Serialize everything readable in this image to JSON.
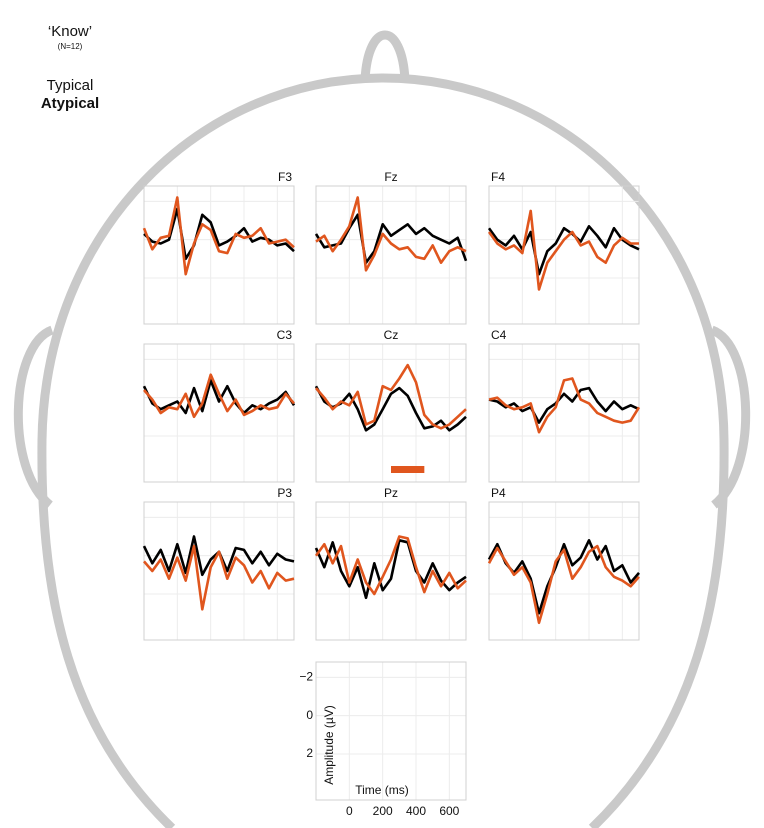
{
  "chart_data": {
    "type": "line",
    "title": "‘Know’",
    "subtitle": "(N=12)",
    "xlabel": "Time (ms)",
    "ylabel": "Amplitude (µV)",
    "x": [
      -200,
      -150,
      -100,
      -50,
      0,
      50,
      100,
      150,
      200,
      250,
      300,
      350,
      400,
      450,
      500,
      550,
      600,
      650,
      700
    ],
    "xlim": [
      -200,
      700
    ],
    "ylim": [
      -2.8,
      4.4
    ],
    "y_inverted": true,
    "xticks": [
      0,
      200,
      400,
      600
    ],
    "yticks": [
      {
        "value": -2,
        "label": "−2"
      },
      0,
      2
    ],
    "grid": true,
    "series": [
      {
        "name": "Typical",
        "color": "#000000"
      },
      {
        "name": "Atypical",
        "color": "#e0561e"
      }
    ],
    "panels": [
      {
        "label": "F3",
        "values": [
          [
            -0.3,
            0.1,
            0.2,
            0,
            -1.6,
            1.0,
            0.3,
            -1.3,
            -0.9,
            0.3,
            0.1,
            -0.2,
            -0.6,
            0.1,
            -0.1,
            0,
            0.3,
            0.2,
            0.6
          ],
          [
            -0.6,
            0.5,
            -0.1,
            -0.2,
            -2.2,
            1.8,
            0.2,
            -0.8,
            -0.5,
            0.6,
            0.7,
            -0.3,
            -0.1,
            -0.2,
            -0.6,
            0.2,
            0.1,
            0,
            0.4
          ]
        ]
      },
      {
        "label": "Fz",
        "values": [
          [
            -0.3,
            0.4,
            0.3,
            0.2,
            -0.6,
            -1.3,
            1.2,
            0.6,
            -0.8,
            -0.2,
            -0.5,
            -0.8,
            -0.3,
            -0.6,
            -0.2,
            0,
            0.2,
            -0.1,
            1.1
          ],
          [
            0.1,
            -0.2,
            0.6,
            0,
            -0.7,
            -2.2,
            1.6,
            0.8,
            -0.3,
            0.2,
            0.5,
            0.4,
            0.9,
            1.0,
            0.3,
            1.2,
            0.6,
            0.4,
            0.6
          ]
        ]
      },
      {
        "label": "F4",
        "values": [
          [
            -0.6,
            0,
            0.3,
            -0.2,
            0.5,
            -0.4,
            1.8,
            0.6,
            0.2,
            -0.6,
            -0.3,
            0.1,
            -0.7,
            -0.2,
            0.4,
            -0.6,
            0,
            0.3,
            0.5
          ],
          [
            -0.4,
            0.2,
            0.5,
            0.3,
            0.7,
            -1.5,
            2.6,
            1.2,
            0.6,
            0,
            -0.4,
            0.3,
            0.1,
            0.9,
            1.2,
            0.3,
            -0.1,
            0.2,
            0.2
          ]
        ]
      },
      {
        "label": "C3",
        "values": [
          [
            -0.6,
            0.3,
            0.6,
            0.4,
            0.2,
            0.8,
            -0.5,
            0.7,
            -0.9,
            0.2,
            -0.6,
            0.3,
            0.8,
            0.4,
            0.6,
            0.3,
            0.1,
            -0.3,
            0.4
          ],
          [
            -0.4,
            0.1,
            0.8,
            0.5,
            0.6,
            -0.2,
            1.0,
            0.3,
            -1.2,
            -0.2,
            0.7,
            0.1,
            0.9,
            0.7,
            0.4,
            0.6,
            0.5,
            -0.2,
            0.3
          ]
        ]
      },
      {
        "label": "Cz",
        "values": [
          [
            -0.6,
            0.2,
            0.5,
            0.3,
            -0.2,
            0.6,
            1.7,
            1.4,
            0.6,
            -0.2,
            -0.5,
            -0.1,
            0.8,
            1.6,
            1.5,
            1.2,
            1.7,
            1.4,
            1.0
          ],
          [
            -0.5,
            0,
            0.6,
            0.2,
            0.4,
            -0.3,
            1.4,
            1.2,
            -0.6,
            -0.4,
            -1.0,
            -1.7,
            -0.8,
            0.9,
            1.4,
            1.6,
            1.4,
            1.0,
            0.6
          ]
        ],
        "window": [
          250,
          450
        ]
      },
      {
        "label": "C4",
        "values": [
          [
            0.1,
            0.2,
            0.5,
            0.3,
            0.7,
            0.5,
            1.3,
            0.6,
            0.3,
            -0.2,
            0.2,
            -0.4,
            -0.5,
            0.2,
            0.7,
            0.2,
            0.6,
            0.4,
            0.6
          ],
          [
            0.1,
            0,
            0.4,
            0.6,
            0.5,
            0.3,
            1.8,
            1.0,
            0.5,
            -0.9,
            -1.0,
            0.1,
            0.3,
            0.8,
            1.0,
            1.2,
            1.3,
            1.2,
            0.5
          ]
        ]
      },
      {
        "label": "P3",
        "values": [
          [
            -0.5,
            0.4,
            -0.3,
            0.8,
            -0.6,
            0.9,
            -1.0,
            1.0,
            0.2,
            -0.2,
            0.8,
            -0.4,
            -0.3,
            0.4,
            -0.2,
            0.5,
            -0.1,
            0.2,
            0.3
          ],
          [
            0.3,
            0.8,
            0.2,
            1.2,
            0.1,
            1.3,
            -0.5,
            2.8,
            0.6,
            -0.2,
            1.2,
            0.1,
            0.5,
            1.4,
            0.8,
            1.7,
            0.9,
            1.3,
            1.2
          ]
        ]
      },
      {
        "label": "Pz",
        "values": [
          [
            -0.4,
            0.6,
            -0.7,
            0.8,
            1.6,
            0.6,
            2.2,
            0.4,
            1.8,
            1.2,
            -0.8,
            -0.7,
            0.8,
            1.4,
            0.4,
            1.3,
            1.8,
            1.4,
            1.1
          ],
          [
            0,
            -0.6,
            0.4,
            -0.5,
            1.4,
            0.2,
            1.4,
            2.0,
            1.1,
            0.2,
            -1.0,
            -0.9,
            0.6,
            1.9,
            0.8,
            1.6,
            0.9,
            1.7,
            1.3
          ]
        ]
      },
      {
        "label": "P4",
        "values": [
          [
            0.2,
            -0.6,
            0.4,
            0.9,
            0.3,
            1.2,
            3.0,
            1.6,
            0.6,
            -0.6,
            0.5,
            0.1,
            -0.8,
            0.2,
            -0.5,
            0.8,
            0.5,
            1.4,
            0.9
          ],
          [
            0.4,
            -0.4,
            0.3,
            1.0,
            0.6,
            1.4,
            3.5,
            2.0,
            0.3,
            -0.3,
            1.2,
            0.6,
            -0.2,
            -0.5,
            0.6,
            1.1,
            1.3,
            1.6,
            1.1
          ]
        ]
      }
    ]
  }
}
